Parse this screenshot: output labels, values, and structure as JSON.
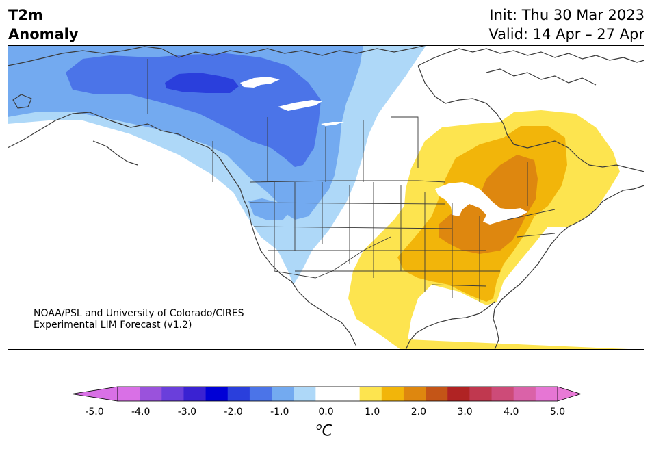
{
  "header": {
    "title_line1": "T2m",
    "title_line2": "Anomaly",
    "init": "Init: Thu 30 Mar 2023",
    "valid": "Valid: 14 Apr – 27 Apr"
  },
  "credit": {
    "line1": "NOAA/PSL and University of Colorado/CIRES",
    "line2": "Experimental LIM Forecast (v1.2)"
  },
  "colorbar": {
    "unit_base": "C",
    "unit_sup": "o",
    "tick_labels": [
      "-5.0",
      "-4.0",
      "-3.0",
      "-2.0",
      "-1.0",
      "0.0",
      "1.0",
      "2.0",
      "3.0",
      "4.0",
      "5.0"
    ],
    "colors": [
      "#d970e6",
      "#9a52dc",
      "#6a3fdb",
      "#3a22d2",
      "#0000d6",
      "#2a3fdc",
      "#4b74e8",
      "#73aaf0",
      "#aed8f8",
      "#ffffff",
      "#ffffff",
      "#fde44f",
      "#f2b50a",
      "#de870f",
      "#c45517",
      "#b02323",
      "#c0384f",
      "#cd4b78",
      "#da62a8",
      "#e676d4"
    ],
    "min_arrow_color": "#d970e6",
    "max_arrow_color": "#e87ad6"
  },
  "map": {
    "regions": [
      {
        "name": "cold-anomaly-weak",
        "anomaly_c": -0.75,
        "color": "#aed8f8"
      },
      {
        "name": "cold-anomaly-moderate",
        "anomaly_c": -1.25,
        "color": "#73aaf0"
      },
      {
        "name": "cold-anomaly-strong",
        "anomaly_c": -1.75,
        "color": "#4b74e8"
      },
      {
        "name": "cold-anomaly-core",
        "anomaly_c": -2.25,
        "color": "#2a3fdc"
      },
      {
        "name": "warm-anomaly-weak",
        "anomaly_c": 0.75,
        "color": "#fde44f"
      },
      {
        "name": "warm-anomaly-moderate",
        "anomaly_c": 1.25,
        "color": "#f2b50a"
      },
      {
        "name": "warm-anomaly-strong",
        "anomaly_c": 1.75,
        "color": "#de870f"
      }
    ]
  }
}
